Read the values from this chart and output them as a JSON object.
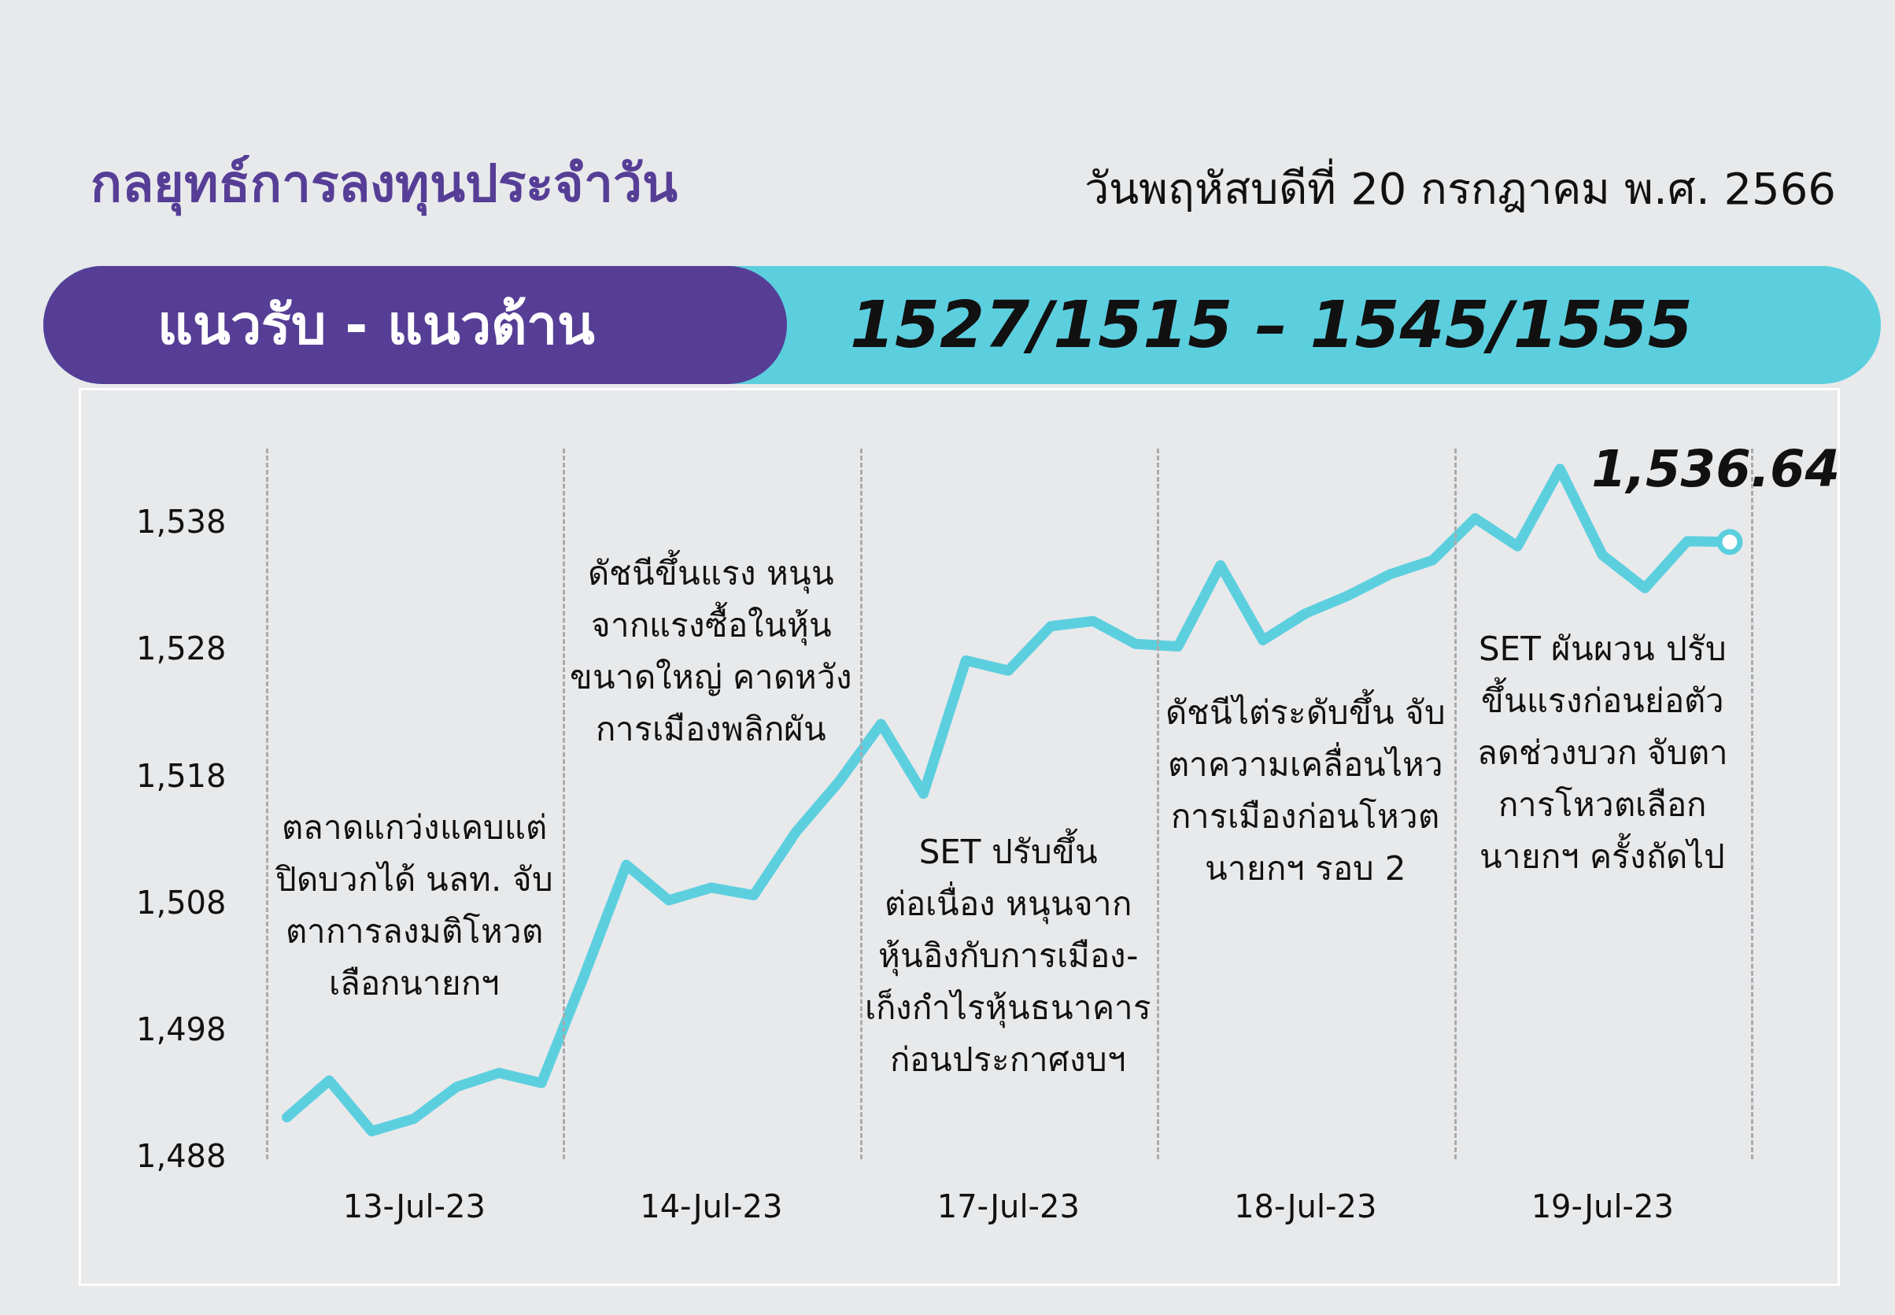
{
  "chart_data": {
    "type": "line",
    "title": "กลยุทธ์การลงทุนประจำวัน",
    "subtitle": "วันพฤหัสบดีที่ 20 กรกฎาคม พ.ศ. 2566",
    "annotations": [
      "แนวรับ - แนวต้าน",
      "1527/1515 – 1545/1555",
      "ตลาดแกว่งแคบแต่\nปิดบวกได้ นลท. จับ\nตาการลงมติโหวต\nเลือกนายกฯ",
      "ดัชนีขึ้นแรง หนุน\nจากแรงซื้อในหุ้น\nขนาดใหญ่ คาดหวัง\nการเมืองพลิกผัน",
      "SET ปรับขึ้น\nต่อเนื่อง หนุนจาก\nหุ้นอิงกับการเมือง-\nเก็งกำไรหุ้นธนาคาร\nก่อนประกาศงบฯ",
      "ดัชนีไต่ระดับขึ้น จับ\nตาความเคลื่อนไหว\nการเมืองก่อนโหวต\nนายกฯ รอบ 2",
      "SET ผันผวน ปรับ\nขึ้นแรงก่อนย่อตัว\nลดช่วงบวก จับตา\nการโหวตเลือก\nนายกฯ ครั้งถัดไป"
    ],
    "categories": [
      null,
      null,
      null,
      "13-Jul-23",
      null,
      null,
      null,
      null,
      null,
      null,
      "14-Jul-23",
      null,
      null,
      null,
      null,
      null,
      null,
      "17-Jul-23",
      null,
      null,
      null,
      null,
      null,
      null,
      "18-Jul-23",
      null,
      null,
      null,
      null,
      null,
      null,
      "19-Jul-23",
      null,
      null,
      null
    ],
    "values": [
      1491.3,
      1494.2,
      1490.2,
      1491.2,
      1493.7,
      1494.8,
      1494.0,
      1502.4,
      1511.2,
      1508.4,
      1509.4,
      1508.8,
      1513.8,
      1517.7,
      1522.3,
      1516.8,
      1527.3,
      1526.5,
      1530.0,
      1530.4,
      1528.6,
      1528.4,
      1534.8,
      1528.9,
      1531.0,
      1532.4,
      1534.1,
      1535.2,
      1538.5,
      1536.3,
      1542.4,
      1535.6,
      1533.0,
      1536.7,
      1536.64
    ],
    "value_labels": [
      null,
      null,
      null,
      null,
      null,
      null,
      null,
      null,
      null,
      null,
      null,
      null,
      null,
      null,
      null,
      null,
      null,
      null,
      null,
      null,
      null,
      null,
      null,
      null,
      null,
      null,
      null,
      null,
      null,
      null,
      null,
      null,
      null,
      null,
      "1,536.64"
    ],
    "color": "#5ccfdf",
    "ylim": [
      1488,
      1544
    ],
    "yticks": [
      {
        "value": 1488,
        "label": "1,488"
      },
      {
        "value": 1498,
        "label": "1,498"
      },
      {
        "value": 1508,
        "label": "1,508"
      },
      {
        "value": 1518,
        "label": "1,518"
      },
      {
        "value": 1528,
        "label": "1,528"
      },
      {
        "value": 1538,
        "label": "1,538"
      }
    ],
    "grid": false,
    "legend": false
  }
}
